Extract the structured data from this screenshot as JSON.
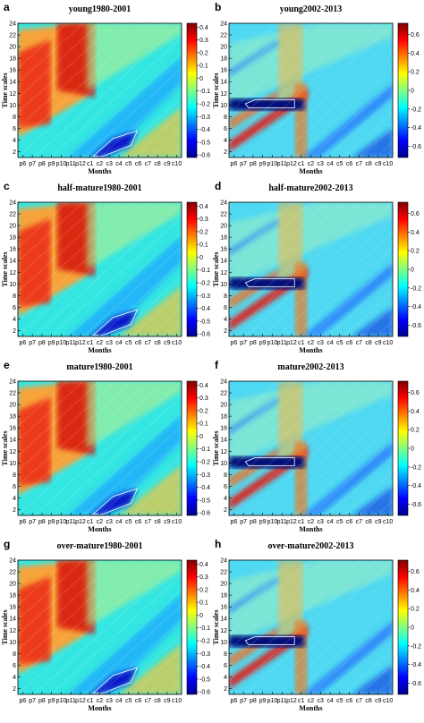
{
  "chart_data": {
    "type": "heatmap",
    "description_kind": "multi-panel wavelet-style correlation heatmaps",
    "x_categories": [
      "p6",
      "p7",
      "p8",
      "p9",
      "p10",
      "p11",
      "p12",
      "c1",
      "c2",
      "c3",
      "c4",
      "c5",
      "c6",
      "c7",
      "c8",
      "c9",
      "c10"
    ],
    "y_ticks": [
      2,
      4,
      6,
      8,
      10,
      12,
      14,
      16,
      18,
      20,
      22,
      24
    ],
    "y_range": [
      1,
      24
    ],
    "xlabel": "Months",
    "ylabel": "Time scales",
    "colormap": [
      "#00008f",
      "#0000ff",
      "#0080ff",
      "#00ffff",
      "#80ff80",
      "#ffff00",
      "#ff8000",
      "#ff0000",
      "#800000"
    ],
    "panels": [
      {
        "letter": "a",
        "title": "young1980-2001",
        "cbar_ticks": [
          "0.4",
          "0.3",
          "0.2",
          "0.1",
          "0",
          "-0.1",
          "-0.2",
          "-0.3",
          "-0.4",
          "-0.5",
          "-0.6"
        ],
        "cbar_range": [
          -0.62,
          0.43
        ],
        "period": "A"
      },
      {
        "letter": "b",
        "title": "young2002-2013",
        "cbar_ticks": [
          "0.6",
          "0.4",
          "0.2",
          "0",
          "-0.2",
          "-0.4",
          "-0.6"
        ],
        "cbar_range": [
          -0.72,
          0.72
        ],
        "period": "B"
      },
      {
        "letter": "c",
        "title": "half-mature1980-2001",
        "cbar_ticks": [
          "0.4",
          "0.3",
          "0.2",
          "0.1",
          "0",
          "-0.1",
          "-0.2",
          "-0.3",
          "-0.4",
          "-0.5",
          "-0.6"
        ],
        "cbar_range": [
          -0.62,
          0.43
        ],
        "period": "A"
      },
      {
        "letter": "d",
        "title": "half-mature2002-2013",
        "cbar_ticks": [
          "0.6",
          "0.4",
          "0.2",
          "0",
          "-0.2",
          "-0.4",
          "-0.6"
        ],
        "cbar_range": [
          -0.72,
          0.72
        ],
        "period": "B"
      },
      {
        "letter": "e",
        "title": "mature1980-2001",
        "cbar_ticks": [
          "0.4",
          "0.3",
          "0.2",
          "0.1",
          "0",
          "-0.1",
          "-0.2",
          "-0.3",
          "-0.4",
          "-0.5",
          "-0.6"
        ],
        "cbar_range": [
          -0.62,
          0.43
        ],
        "period": "A"
      },
      {
        "letter": "f",
        "title": "mature2002-2013",
        "cbar_ticks": [
          "0.6",
          "0.4",
          "0.2",
          "0",
          "-0.2",
          "-0.4",
          "-0.6"
        ],
        "cbar_range": [
          -0.72,
          0.72
        ],
        "period": "B"
      },
      {
        "letter": "g",
        "title": "over-mature1980-2001",
        "cbar_ticks": [
          "0.4",
          "0.3",
          "0.2",
          "0.1",
          "0",
          "-0.1",
          "-0.2",
          "-0.3",
          "-0.4",
          "-0.5",
          "-0.6"
        ],
        "cbar_range": [
          -0.62,
          0.43
        ],
        "period": "A"
      },
      {
        "letter": "h",
        "title": "over-mature2002-2013",
        "cbar_ticks": [
          "0.6",
          "0.4",
          "0.2",
          "0",
          "-0.2",
          "-0.4",
          "-0.6"
        ],
        "cbar_range": [
          -0.72,
          0.72
        ],
        "period": "B"
      }
    ]
  }
}
